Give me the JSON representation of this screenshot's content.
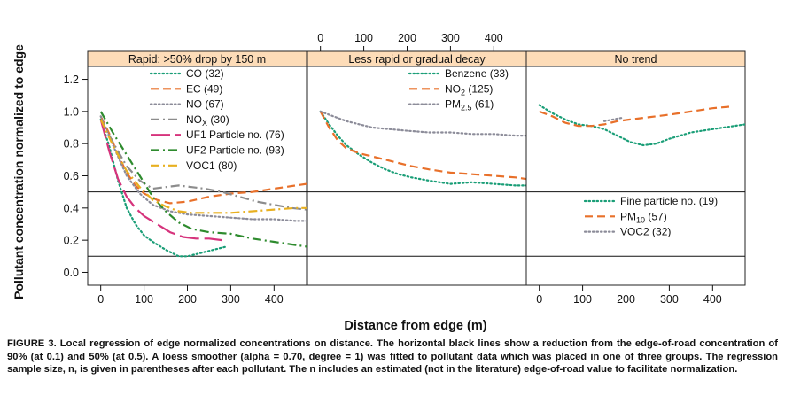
{
  "chart_data": {
    "type": "line",
    "ylabel": "Pollutant concentration normalized to edge",
    "xlabel": "Distance from edge (m)",
    "xlim": [
      -30,
      475
    ],
    "ylim": [
      -0.08,
      1.28
    ],
    "x_ticks": [
      0,
      100,
      200,
      300,
      400
    ],
    "y_ticks": [
      0.0,
      0.2,
      0.4,
      0.6,
      0.8,
      1.0,
      1.2
    ],
    "reference_lines": [
      0.1,
      0.5
    ],
    "legend_placement": "inside each panel",
    "panels": [
      {
        "title": "Rapid: >50% drop by 150 m",
        "series": [
          {
            "name": "CO (32)",
            "style": "dotted",
            "color": "#1a9e77",
            "x": [
              0,
              20,
              40,
              60,
              80,
              100,
              120,
              150,
              180,
              200,
              230,
              260,
              290
            ],
            "y": [
              0.95,
              0.78,
              0.57,
              0.4,
              0.3,
              0.23,
              0.19,
              0.14,
              0.1,
              0.1,
              0.12,
              0.14,
              0.16
            ]
          },
          {
            "name": "EC (49)",
            "style": "dashed",
            "color": "#e8702a",
            "x": [
              0,
              20,
              40,
              60,
              80,
              100,
              130,
              160,
              200,
              250,
              300,
              350,
              400,
              450,
              475
            ],
            "y": [
              0.97,
              0.86,
              0.73,
              0.62,
              0.54,
              0.49,
              0.45,
              0.43,
              0.44,
              0.47,
              0.49,
              0.5,
              0.52,
              0.54,
              0.55
            ]
          },
          {
            "name": "NO (67)",
            "style": "dotted",
            "color": "#8c8c99",
            "x": [
              0,
              30,
              60,
              90,
              120,
              160,
              200,
              250,
              300,
              350,
              400,
              450,
              475
            ],
            "y": [
              0.97,
              0.78,
              0.6,
              0.49,
              0.42,
              0.38,
              0.36,
              0.35,
              0.34,
              0.33,
              0.33,
              0.32,
              0.32
            ]
          },
          {
            "name": "NOx (30)",
            "style": "dashdot",
            "color": "#8c8c8c",
            "x": [
              0,
              30,
              60,
              90,
              120,
              150,
              180,
              210,
              240,
              280,
              320,
              360,
              400,
              440,
              475
            ],
            "y": [
              0.95,
              0.8,
              0.66,
              0.57,
              0.52,
              0.53,
              0.54,
              0.53,
              0.52,
              0.5,
              0.47,
              0.44,
              0.42,
              0.4,
              0.39
            ]
          },
          {
            "name": "UF1 Particle no. (76)",
            "style": "longdash",
            "color": "#d6337c",
            "x": [
              0,
              20,
              40,
              60,
              80,
              100,
              130,
              160,
              190,
              220,
              250,
              280
            ],
            "y": [
              0.95,
              0.75,
              0.58,
              0.47,
              0.4,
              0.35,
              0.3,
              0.25,
              0.22,
              0.21,
              0.21,
              0.2
            ]
          },
          {
            "name": "UF2 Particle no. (93)",
            "style": "dashdot",
            "color": "#2e8b2e",
            "x": [
              0,
              30,
              60,
              90,
              120,
              150,
              180,
              210,
              250,
              300,
              350,
              400,
              450,
              475
            ],
            "y": [
              1.0,
              0.86,
              0.73,
              0.6,
              0.47,
              0.38,
              0.31,
              0.27,
              0.25,
              0.24,
              0.21,
              0.19,
              0.17,
              0.16
            ]
          },
          {
            "name": "VOC1 (80)",
            "style": "dashdot",
            "color": "#e8b020",
            "x": [
              0,
              30,
              60,
              90,
              120,
              150,
              180,
              210,
              250,
              300,
              350,
              400,
              450,
              475
            ],
            "y": [
              0.95,
              0.78,
              0.63,
              0.53,
              0.45,
              0.41,
              0.38,
              0.37,
              0.37,
              0.37,
              0.38,
              0.39,
              0.4,
              0.4
            ]
          }
        ]
      },
      {
        "title": "Less rapid or gradual decay",
        "series": [
          {
            "name_main": "Benzene",
            "name_sub": "",
            "name_suffix": " (33)",
            "style": "dotted",
            "color": "#1a9e77",
            "x": [
              0,
              20,
              40,
              60,
              90,
              120,
              150,
              180,
              210,
              250,
              300,
              350,
              400,
              450,
              475
            ],
            "y": [
              1.0,
              0.92,
              0.85,
              0.79,
              0.73,
              0.68,
              0.64,
              0.61,
              0.59,
              0.57,
              0.55,
              0.56,
              0.55,
              0.54,
              0.54
            ]
          },
          {
            "name_main": "NO",
            "name_sub": "2",
            "name_suffix": " (125)",
            "style": "dashed",
            "color": "#e8702a",
            "x": [
              0,
              20,
              40,
              60,
              90,
              120,
              150,
              180,
              210,
              250,
              300,
              350,
              400,
              450,
              475
            ],
            "y": [
              1.0,
              0.9,
              0.82,
              0.77,
              0.74,
              0.72,
              0.7,
              0.68,
              0.66,
              0.64,
              0.62,
              0.61,
              0.6,
              0.59,
              0.58
            ]
          },
          {
            "name_main": "PM",
            "name_sub": "2.5",
            "name_suffix": " (61)",
            "style": "dotted",
            "color": "#8c8c99",
            "x": [
              0,
              30,
              60,
              90,
              120,
              160,
              200,
              250,
              300,
              350,
              400,
              450,
              475
            ],
            "y": [
              1.0,
              0.97,
              0.94,
              0.92,
              0.9,
              0.89,
              0.88,
              0.87,
              0.87,
              0.86,
              0.86,
              0.85,
              0.85
            ]
          }
        ]
      },
      {
        "title": "No trend",
        "series": [
          {
            "name_main": "Fine particle no.",
            "name_sub": "",
            "name_suffix": " (19)",
            "style": "dotted",
            "color": "#1a9e77",
            "x": [
              0,
              30,
              60,
              90,
              120,
              150,
              180,
              210,
              240,
              270,
              300,
              350,
              400,
              450,
              475
            ],
            "y": [
              1.04,
              0.99,
              0.95,
              0.92,
              0.91,
              0.89,
              0.85,
              0.81,
              0.79,
              0.8,
              0.83,
              0.87,
              0.89,
              0.91,
              0.92
            ]
          },
          {
            "name_main": "PM",
            "name_sub": "10",
            "name_suffix": " (57)",
            "style": "dashed",
            "color": "#e8702a",
            "x": [
              0,
              30,
              60,
              90,
              120,
              150,
              180,
              210,
              240,
              270,
              300,
              350,
              400,
              440
            ],
            "y": [
              1.0,
              0.97,
              0.93,
              0.91,
              0.91,
              0.92,
              0.94,
              0.95,
              0.96,
              0.97,
              0.98,
              1.0,
              1.02,
              1.03
            ]
          },
          {
            "name_main": "VOC2",
            "name_sub": "",
            "name_suffix": " (32)",
            "style": "dotted",
            "color": "#8c8c99",
            "x": [
              150,
              170,
              190
            ],
            "y": [
              0.94,
              0.95,
              0.96
            ]
          }
        ]
      }
    ]
  },
  "caption": {
    "label": "FIGURE 3.",
    "text": " Local regression of edge normalized concentrations on distance. The horizontal black lines show a reduction from the edge-of-road concentration of 90% (at 0.1) and 50% (at 0.5). A loess smoother (alpha = 0.70, degree = 1) was fitted to pollutant data which was placed in one of three groups. The regression sample size, n, is given in parentheses after each pollutant. The n includes an estimated (not in the literature) edge-of-road value to facilitate normalization."
  },
  "style": {
    "strip_fill": "#fddcb8",
    "panel_border": "#222222"
  }
}
